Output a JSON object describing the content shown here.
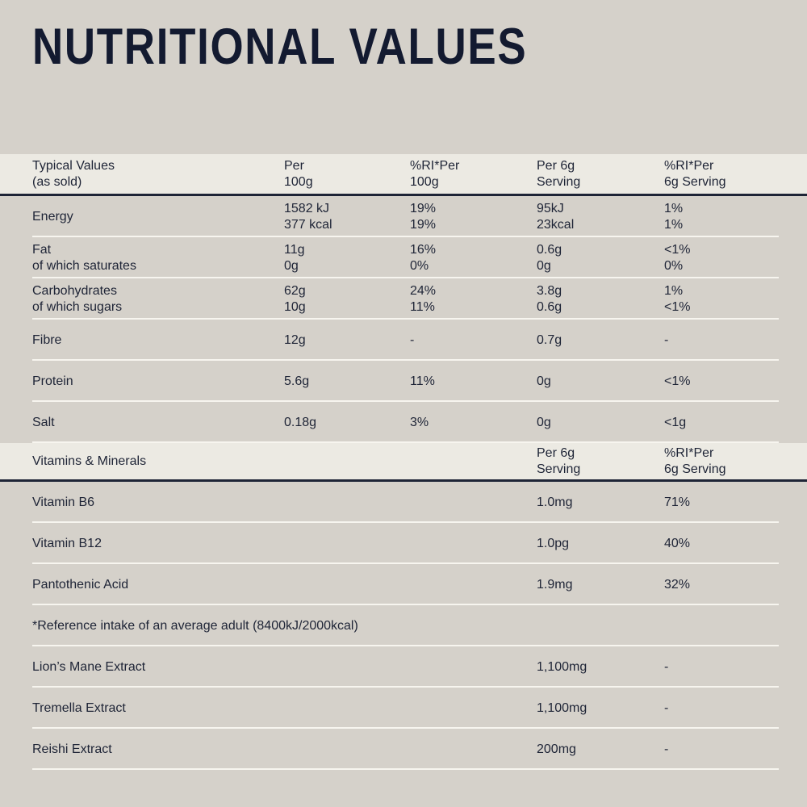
{
  "title": "NUTRITIONAL VALUES",
  "colors": {
    "background": "#d5d1ca",
    "band_background": "#eceae3",
    "text": "#1e2436",
    "title_text": "#131a30",
    "separator_line": "#f7f5ef"
  },
  "table": {
    "header": {
      "label": [
        "Typical Values",
        "(as sold)"
      ],
      "per100g": [
        "Per",
        "100g"
      ],
      "ri_per100g": [
        "%RI*Per",
        "100g"
      ],
      "per6g": [
        "Per 6g",
        "Serving"
      ],
      "ri_per6g": [
        "%RI*Per",
        "6g Serving"
      ]
    },
    "rows": [
      {
        "label": [
          "Energy"
        ],
        "per100g": [
          "1582 kJ",
          "377 kcal"
        ],
        "ri100": [
          "19%",
          "19%"
        ],
        "per6g": [
          "95kJ",
          "23kcal"
        ],
        "ri6": [
          "1%",
          "1%"
        ]
      },
      {
        "label": [
          "Fat",
          "of which saturates"
        ],
        "per100g": [
          "11g",
          "0g"
        ],
        "ri100": [
          "16%",
          "0%"
        ],
        "per6g": [
          "0.6g",
          "0g"
        ],
        "ri6": [
          "<1%",
          "0%"
        ]
      },
      {
        "label": [
          "Carbohydrates",
          "of which sugars"
        ],
        "per100g": [
          "62g",
          "10g"
        ],
        "ri100": [
          "24%",
          "11%"
        ],
        "per6g": [
          "3.8g",
          "0.6g"
        ],
        "ri6": [
          "1%",
          "<1%"
        ]
      },
      {
        "label": [
          "Fibre"
        ],
        "per100g": [
          "12g"
        ],
        "ri100": [
          "-"
        ],
        "per6g": [
          "0.7g"
        ],
        "ri6": [
          "-"
        ]
      },
      {
        "label": [
          "Protein"
        ],
        "per100g": [
          "5.6g"
        ],
        "ri100": [
          "11%"
        ],
        "per6g": [
          "0g"
        ],
        "ri6": [
          "<1%"
        ]
      },
      {
        "label": [
          "Salt"
        ],
        "per100g": [
          "0.18g"
        ],
        "ri100": [
          "3%"
        ],
        "per6g": [
          "0g"
        ],
        "ri6": [
          "<1g"
        ]
      }
    ],
    "vitamins_header": {
      "label": "Vitamins & Minerals",
      "per6g": [
        "Per 6g",
        "Serving"
      ],
      "ri6": [
        "%RI*Per",
        "6g Serving"
      ]
    },
    "vitamin_rows": [
      {
        "label": "Vitamin B6",
        "per6g": "1.0mg",
        "ri6": "71%"
      },
      {
        "label": "Vitamin B12",
        "per6g": "1.0pg",
        "ri6": "40%"
      },
      {
        "label": "Pantothenic Acid",
        "per6g": "1.9mg",
        "ri6": "32%"
      }
    ],
    "note": "*Reference intake of an average adult (8400kJ/2000kcal)",
    "extract_rows": [
      {
        "label": "Lion’s Mane Extract",
        "per6g": "1,100mg",
        "ri6": "-"
      },
      {
        "label": "Tremella Extract",
        "per6g": "1,100mg",
        "ri6": "-"
      },
      {
        "label": "Reishi Extract",
        "per6g": "200mg",
        "ri6": "-"
      }
    ]
  }
}
